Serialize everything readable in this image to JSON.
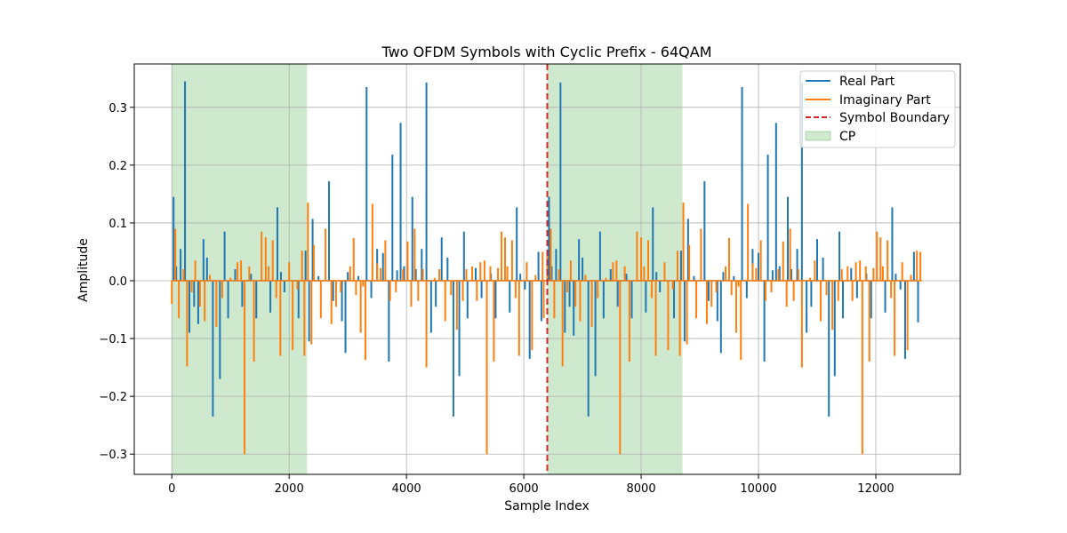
{
  "chart_data": {
    "type": "line",
    "title": "Two OFDM Symbols with Cyclic Prefix - 64QAM",
    "xlabel": "Sample Index",
    "ylabel": "Amplitude",
    "xlim": [
      -640,
      13440
    ],
    "ylim": [
      -0.335,
      0.375
    ],
    "xticks": [
      0,
      2000,
      4000,
      6000,
      8000,
      10000,
      12000
    ],
    "xtick_labels": [
      "0",
      "2000",
      "4000",
      "6000",
      "8000",
      "10000",
      "12000"
    ],
    "yticks": [
      -0.3,
      -0.2,
      -0.1,
      0.0,
      0.1,
      0.2,
      0.3
    ],
    "ytick_labels": [
      "−0.3",
      "−0.2",
      "−0.1",
      "0.0",
      "0.1",
      "0.2",
      "0.3"
    ],
    "grid": true,
    "legend_position": "top-right",
    "legend": [
      "Real Part",
      "Imaginary Part",
      "Symbol Boundary",
      "CP"
    ],
    "cp_regions": [
      [
        0,
        2304
      ],
      [
        6400,
        8704
      ]
    ],
    "symbol_boundary_x": 6400,
    "colors": {
      "real": "#1f77b4",
      "imag": "#ff7f0e",
      "boundary": "#d62728",
      "cp": "#2ca02c"
    },
    "series": [
      {
        "name": "Real Part",
        "points": [
          [
            30,
            0.145
          ],
          [
            75,
            0.025
          ],
          [
            150,
            0.055
          ],
          [
            225,
            0.345
          ],
          [
            300,
            -0.09
          ],
          [
            380,
            -0.045
          ],
          [
            450,
            -0.075
          ],
          [
            540,
            0.072
          ],
          [
            600,
            0.04
          ],
          [
            700,
            -0.235
          ],
          [
            820,
            -0.17
          ],
          [
            900,
            0.085
          ],
          [
            960,
            -0.065
          ],
          [
            1080,
            0.02
          ],
          [
            1200,
            -0.045
          ],
          [
            1350,
            0.012
          ],
          [
            1440,
            -0.065
          ],
          [
            1680,
            -0.055
          ],
          [
            1800,
            0.127
          ],
          [
            1860,
            0.015
          ],
          [
            1920,
            -0.02
          ],
          [
            2160,
            -0.065
          ],
          [
            2280,
            0.052
          ],
          [
            2340,
            -0.105
          ],
          [
            2400,
            0.107
          ],
          [
            2500,
            0.008
          ],
          [
            2680,
            0.172
          ],
          [
            2750,
            -0.035
          ],
          [
            2900,
            -0.07
          ],
          [
            2960,
            -0.125
          ],
          [
            3000,
            0.015
          ],
          [
            3180,
            0.008
          ],
          [
            3320,
            0.335
          ],
          [
            3400,
            -0.03
          ],
          [
            3500,
            0.055
          ],
          [
            3600,
            0.048
          ],
          [
            3700,
            -0.14
          ],
          [
            3760,
            0.218
          ],
          [
            3840,
            0.018
          ],
          [
            3900,
            0.273
          ],
          [
            3960,
            0.025
          ],
          [
            4100,
            0.145
          ],
          [
            4160,
            0.02
          ],
          [
            4260,
            0.055
          ],
          [
            4340,
            0.343
          ],
          [
            4420,
            -0.09
          ],
          [
            4500,
            -0.045
          ],
          [
            4600,
            0.075
          ],
          [
            4700,
            0.04
          ],
          [
            4800,
            -0.235
          ],
          [
            4900,
            -0.165
          ],
          [
            4980,
            0.085
          ],
          [
            5040,
            -0.065
          ],
          [
            5180,
            0.022
          ],
          [
            5280,
            -0.03
          ],
          [
            5440,
            0.012
          ],
          [
            5520,
            -0.065
          ],
          [
            5760,
            -0.055
          ],
          [
            5880,
            0.127
          ],
          [
            5940,
            0.012
          ],
          [
            6020,
            -0.015
          ],
          [
            6100,
            -0.135
          ],
          [
            6250,
            0.05
          ],
          [
            6300,
            -0.07
          ],
          [
            6430,
            0.145
          ],
          [
            6475,
            0.025
          ],
          [
            6550,
            0.055
          ],
          [
            6625,
            0.343
          ],
          [
            6700,
            -0.09
          ],
          [
            6780,
            -0.045
          ],
          [
            6850,
            -0.095
          ],
          [
            6940,
            0.072
          ],
          [
            7000,
            0.04
          ],
          [
            7100,
            -0.235
          ],
          [
            7220,
            -0.165
          ],
          [
            7300,
            0.085
          ],
          [
            7360,
            -0.065
          ],
          [
            7480,
            0.02
          ],
          [
            7600,
            -0.045
          ],
          [
            7750,
            0.012
          ],
          [
            7840,
            -0.065
          ],
          [
            8080,
            -0.055
          ],
          [
            8200,
            0.127
          ],
          [
            8260,
            0.015
          ],
          [
            8320,
            -0.02
          ],
          [
            8560,
            -0.065
          ],
          [
            8680,
            0.052
          ],
          [
            8740,
            -0.105
          ],
          [
            8800,
            0.107
          ],
          [
            8900,
            0.008
          ],
          [
            9080,
            0.172
          ],
          [
            9150,
            -0.035
          ],
          [
            9300,
            -0.07
          ],
          [
            9360,
            -0.125
          ],
          [
            9400,
            0.015
          ],
          [
            9580,
            0.008
          ],
          [
            9720,
            0.335
          ],
          [
            9800,
            -0.03
          ],
          [
            9900,
            0.055
          ],
          [
            10000,
            0.048
          ],
          [
            10100,
            -0.14
          ],
          [
            10160,
            0.218
          ],
          [
            10240,
            0.018
          ],
          [
            10300,
            0.273
          ],
          [
            10360,
            0.025
          ],
          [
            10500,
            0.145
          ],
          [
            10560,
            0.02
          ],
          [
            10660,
            0.055
          ],
          [
            10740,
            0.343
          ],
          [
            10820,
            -0.09
          ],
          [
            10900,
            -0.045
          ],
          [
            11000,
            0.072
          ],
          [
            11100,
            0.04
          ],
          [
            11200,
            -0.235
          ],
          [
            11300,
            -0.165
          ],
          [
            11380,
            0.085
          ],
          [
            11440,
            -0.065
          ],
          [
            11580,
            0.022
          ],
          [
            11680,
            -0.03
          ],
          [
            11840,
            0.012
          ],
          [
            11920,
            -0.065
          ],
          [
            12160,
            -0.055
          ],
          [
            12280,
            0.127
          ],
          [
            12340,
            0.012
          ],
          [
            12420,
            -0.015
          ],
          [
            12500,
            -0.135
          ],
          [
            12650,
            0.05
          ],
          [
            12720,
            -0.072
          ]
        ]
      },
      {
        "name": "Imaginary Part",
        "points": [
          [
            0,
            -0.04
          ],
          [
            60,
            0.09
          ],
          [
            120,
            -0.065
          ],
          [
            200,
            0.02
          ],
          [
            260,
            -0.148
          ],
          [
            340,
            -0.02
          ],
          [
            400,
            0.035
          ],
          [
            480,
            -0.045
          ],
          [
            560,
            -0.07
          ],
          [
            650,
            0.01
          ],
          [
            760,
            -0.08
          ],
          [
            860,
            -0.03
          ],
          [
            1000,
            0.005
          ],
          [
            1120,
            0.032
          ],
          [
            1180,
            0.035
          ],
          [
            1240,
            -0.3
          ],
          [
            1320,
            0.025
          ],
          [
            1400,
            -0.14
          ],
          [
            1530,
            0.085
          ],
          [
            1600,
            0.075
          ],
          [
            1650,
            0.025
          ],
          [
            1720,
            0.07
          ],
          [
            1780,
            -0.03
          ],
          [
            1850,
            -0.13
          ],
          [
            2000,
            0.032
          ],
          [
            2060,
            -0.12
          ],
          [
            2140,
            -0.015
          ],
          [
            2220,
            0.052
          ],
          [
            2260,
            -0.13
          ],
          [
            2320,
            0.135
          ],
          [
            2380,
            -0.11
          ],
          [
            2420,
            0.062
          ],
          [
            2540,
            -0.065
          ],
          [
            2620,
            0.09
          ],
          [
            2720,
            -0.075
          ],
          [
            2800,
            -0.045
          ],
          [
            2880,
            -0.02
          ],
          [
            3040,
            0.025
          ],
          [
            3100,
            0.074
          ],
          [
            3140,
            -0.025
          ],
          [
            3220,
            -0.09
          ],
          [
            3260,
            -0.01
          ],
          [
            3300,
            -0.137
          ],
          [
            3420,
            0.133
          ],
          [
            3500,
            0.03
          ],
          [
            3560,
            0.022
          ],
          [
            3640,
            0.07
          ],
          [
            3720,
            -0.035
          ],
          [
            3820,
            -0.02
          ],
          [
            3940,
            0.02
          ],
          [
            4020,
            0.068
          ],
          [
            4080,
            -0.045
          ],
          [
            4140,
            0.09
          ],
          [
            4200,
            -0.035
          ],
          [
            4280,
            0.02
          ],
          [
            4340,
            -0.15
          ],
          [
            4480,
            0.005
          ],
          [
            4560,
            0.02
          ],
          [
            4660,
            -0.07
          ],
          [
            4760,
            -0.025
          ],
          [
            4860,
            -0.085
          ],
          [
            4960,
            -0.035
          ],
          [
            5020,
            0.02
          ],
          [
            5120,
            0.025
          ],
          [
            5200,
            -0.035
          ],
          [
            5260,
            0.032
          ],
          [
            5330,
            0.035
          ],
          [
            5370,
            -0.3
          ],
          [
            5430,
            0.025
          ],
          [
            5490,
            -0.14
          ],
          [
            5560,
            0.022
          ],
          [
            5620,
            0.085
          ],
          [
            5680,
            0.075
          ],
          [
            5720,
            0.025
          ],
          [
            5800,
            0.07
          ],
          [
            5860,
            -0.03
          ],
          [
            5920,
            -0.13
          ],
          [
            6050,
            0.032
          ],
          [
            6140,
            -0.12
          ],
          [
            6200,
            0.01
          ],
          [
            6320,
            0.05
          ],
          [
            6340,
            -0.065
          ],
          [
            6400,
            0.045
          ],
          [
            6460,
            0.09
          ],
          [
            6520,
            -0.065
          ],
          [
            6600,
            0.02
          ],
          [
            6660,
            -0.148
          ],
          [
            6740,
            -0.02
          ],
          [
            6800,
            0.035
          ],
          [
            6880,
            -0.045
          ],
          [
            6960,
            -0.07
          ],
          [
            7050,
            0.01
          ],
          [
            7160,
            -0.08
          ],
          [
            7260,
            -0.03
          ],
          [
            7400,
            0.005
          ],
          [
            7520,
            0.032
          ],
          [
            7580,
            0.035
          ],
          [
            7640,
            -0.3
          ],
          [
            7720,
            0.025
          ],
          [
            7800,
            -0.14
          ],
          [
            7930,
            0.085
          ],
          [
            8000,
            0.075
          ],
          [
            8050,
            0.025
          ],
          [
            8120,
            0.07
          ],
          [
            8180,
            -0.03
          ],
          [
            8250,
            -0.13
          ],
          [
            8400,
            0.032
          ],
          [
            8460,
            -0.12
          ],
          [
            8540,
            -0.015
          ],
          [
            8620,
            0.052
          ],
          [
            8660,
            -0.13
          ],
          [
            8720,
            0.135
          ],
          [
            8780,
            -0.11
          ],
          [
            8820,
            0.062
          ],
          [
            8940,
            -0.065
          ],
          [
            9020,
            0.09
          ],
          [
            9120,
            -0.075
          ],
          [
            9200,
            -0.045
          ],
          [
            9280,
            -0.02
          ],
          [
            9440,
            0.025
          ],
          [
            9500,
            0.074
          ],
          [
            9540,
            -0.025
          ],
          [
            9620,
            -0.09
          ],
          [
            9660,
            -0.01
          ],
          [
            9700,
            -0.137
          ],
          [
            9820,
            0.133
          ],
          [
            9900,
            0.03
          ],
          [
            9960,
            0.022
          ],
          [
            10040,
            0.07
          ],
          [
            10120,
            -0.035
          ],
          [
            10220,
            -0.02
          ],
          [
            10340,
            0.02
          ],
          [
            10420,
            0.068
          ],
          [
            10480,
            -0.045
          ],
          [
            10540,
            0.09
          ],
          [
            10600,
            -0.035
          ],
          [
            10680,
            0.02
          ],
          [
            10740,
            -0.15
          ],
          [
            10880,
            0.005
          ],
          [
            10960,
            0.035
          ],
          [
            11060,
            -0.07
          ],
          [
            11160,
            -0.025
          ],
          [
            11260,
            -0.085
          ],
          [
            11360,
            -0.035
          ],
          [
            11420,
            0.02
          ],
          [
            11520,
            0.025
          ],
          [
            11600,
            -0.035
          ],
          [
            11660,
            0.032
          ],
          [
            11730,
            0.035
          ],
          [
            11770,
            -0.3
          ],
          [
            11830,
            0.025
          ],
          [
            11890,
            -0.14
          ],
          [
            11960,
            0.022
          ],
          [
            12020,
            0.085
          ],
          [
            12080,
            0.075
          ],
          [
            12120,
            0.025
          ],
          [
            12200,
            0.07
          ],
          [
            12260,
            -0.03
          ],
          [
            12320,
            -0.13
          ],
          [
            12450,
            0.032
          ],
          [
            12540,
            -0.12
          ],
          [
            12600,
            0.01
          ],
          [
            12700,
            0.052
          ],
          [
            12760,
            0.05
          ],
          [
            12790,
            0.0
          ]
        ]
      }
    ]
  }
}
